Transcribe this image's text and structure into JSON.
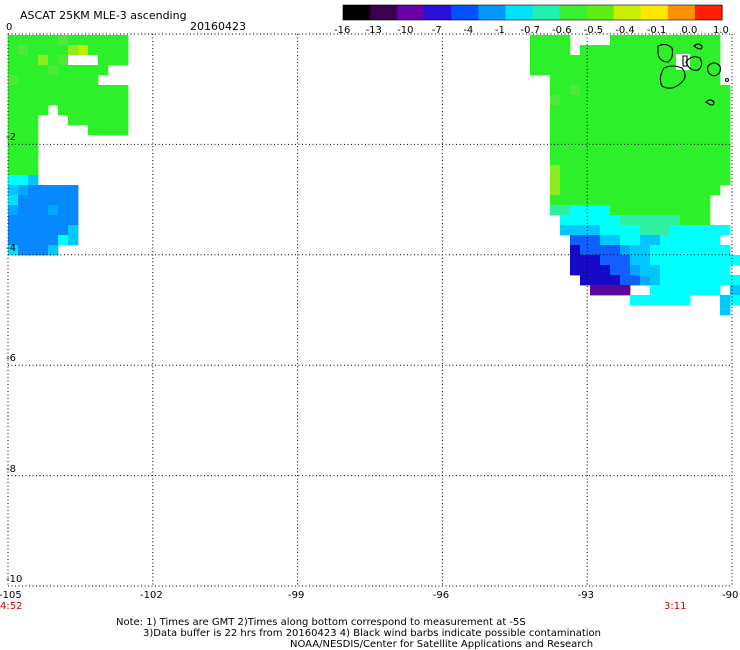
{
  "header": {
    "title": "ASCAT 25KM MLE-3 ascending",
    "date": "20160423"
  },
  "colorbar": {
    "tick_labels": [
      "-16",
      "-13",
      "-10",
      "-7",
      "-4",
      "-1",
      "-0.7",
      "-0.6",
      "-0.5",
      "-0.4",
      "-0.1",
      "0.0",
      "1.0"
    ],
    "colors": [
      "#000000",
      "#3a0050",
      "#6a00a8",
      "#2a10d8",
      "#0050ff",
      "#0098ff",
      "#00e0ff",
      "#20f0b0",
      "#38ef30",
      "#60ee10",
      "#c8f000",
      "#ffe800",
      "#ff9000",
      "#ff2000"
    ]
  },
  "map": {
    "lat_labels": [
      "0",
      "-2",
      "-4",
      "-6",
      "-8",
      "-10"
    ],
    "lon_labels": [
      "-105",
      "-102",
      "-99",
      "-96",
      "-93",
      "-90"
    ],
    "time_left": "4:52",
    "time_right": "3:11",
    "palette": {
      "G": "#2cf029",
      "g": "#50e83a",
      "L": "#8cec20",
      "Y": "#b6f000",
      "T": "#2ef0a0",
      "C": "#00ffff",
      "c": "#00e0ff",
      "S": "#00c8ff",
      "s": "#00a8ff",
      "B": "#0888ff",
      "b": "#1060ff",
      "D": "#2830e8",
      "N": "#1808c8",
      "P": "#5a0898",
      "W": "#ffffff"
    },
    "legend_ticks_note": ""
  },
  "footer": {
    "line1": "Note: 1) Times are GMT 2)Times along bottom correspond to measurement at -5S",
    "line2": "3)Data buffer is 22 hrs from 20160423 4) Black wind barbs indicate possible contamination",
    "line3": "NOAA/NESDIS/Center for Satellite Applications and Research"
  }
}
